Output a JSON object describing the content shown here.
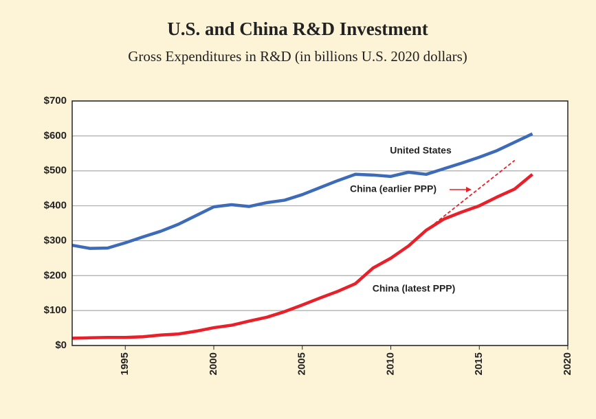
{
  "chart_data": {
    "type": "line",
    "title": "U.S. and China R&D Investment",
    "subtitle": "Gross Expenditures in R&D (in billions U.S. 2020 dollars)",
    "x": [
      1992,
      1993,
      1994,
      1995,
      1996,
      1997,
      1998,
      1999,
      2000,
      2001,
      2002,
      2003,
      2004,
      2005,
      2006,
      2007,
      2008,
      2009,
      2010,
      2011,
      2012,
      2013,
      2014,
      2015,
      2016,
      2017,
      2018
    ],
    "series": [
      {
        "name": "United States",
        "color": "#3d6bb8",
        "values": [
          287,
          278,
          279,
          294,
          311,
          327,
          347,
          372,
          397,
          403,
          398,
          409,
          416,
          432,
          452,
          472,
          490,
          488,
          484,
          496,
          490,
          506,
          522,
          539,
          558,
          582,
          606
        ]
      },
      {
        "name": "China (latest PPP)",
        "color": "#e8202a",
        "values": [
          21,
          22,
          23,
          23,
          25,
          30,
          33,
          41,
          51,
          58,
          70,
          81,
          97,
          116,
          136,
          155,
          177,
          222,
          250,
          285,
          330,
          362,
          382,
          400,
          425,
          448,
          490
        ]
      },
      {
        "name": "China (earlier PPP)",
        "color": "#e8202a",
        "dashed": true,
        "values": [
          null,
          null,
          null,
          null,
          null,
          null,
          null,
          null,
          null,
          null,
          null,
          null,
          null,
          null,
          null,
          null,
          null,
          null,
          null,
          null,
          330,
          370,
          410,
          450,
          490,
          530,
          null
        ]
      }
    ],
    "xlim": [
      1992,
      2020
    ],
    "xticks": [
      1995,
      2000,
      2005,
      2010,
      2015,
      2020
    ],
    "ylim": [
      0,
      700
    ],
    "yticks": [
      {
        "value": 0,
        "label": "$0"
      },
      {
        "value": 100,
        "label": "$100"
      },
      {
        "value": 200,
        "label": "$200"
      },
      {
        "value": 300,
        "label": "$300"
      },
      {
        "value": 400,
        "label": "$400"
      },
      {
        "value": 500,
        "label": "$500"
      },
      {
        "value": 600,
        "label": "$600"
      },
      {
        "value": 700,
        "label": "$700"
      }
    ],
    "grid": true
  }
}
